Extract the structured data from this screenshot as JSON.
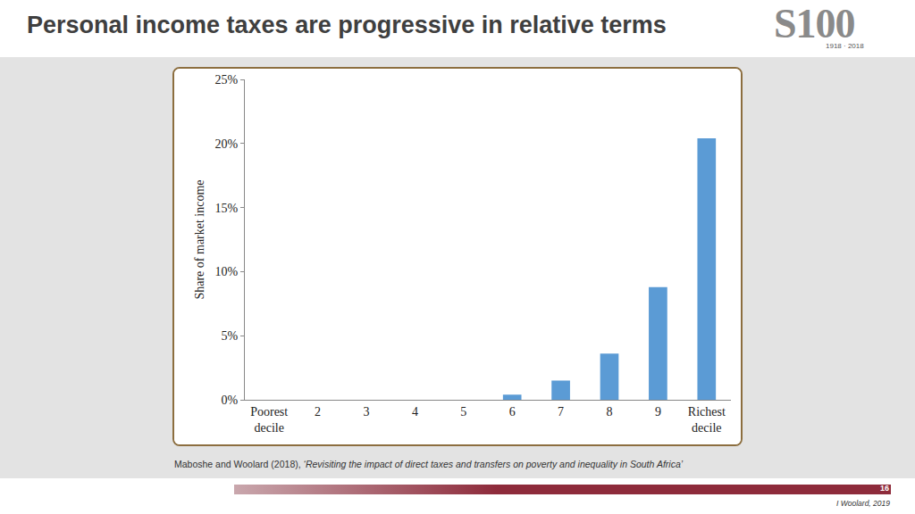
{
  "slide": {
    "title": "Personal income taxes are progressive in relative terms",
    "logo": {
      "text": "S100",
      "years": "1918 · 2018"
    },
    "caption": {
      "source": "Maboshe and Woolard (2018), ",
      "work": "‘Revisiting the impact of direct taxes and transfers on poverty and inequality in South Africa’"
    },
    "page_number": "16",
    "author": "I Woolard, 2019"
  },
  "chart_data": {
    "type": "bar",
    "y_label": "Share of market income",
    "categories": [
      "Poorest decile",
      "2",
      "3",
      "4",
      "5",
      "6",
      "7",
      "8",
      "9",
      "Richest decile"
    ],
    "values": [
      0,
      0,
      0,
      0,
      0,
      0.4,
      1.5,
      3.6,
      8.8,
      20.4
    ],
    "color": "#5b9bd5",
    "ylim": [
      0,
      25
    ],
    "yticks": [
      {
        "value": 0,
        "label": "0%"
      },
      {
        "value": 5,
        "label": "5%"
      },
      {
        "value": 10,
        "label": "10%"
      },
      {
        "value": 15,
        "label": "15%"
      },
      {
        "value": 20,
        "label": "20%"
      },
      {
        "value": 25,
        "label": "25%"
      }
    ],
    "grid": false
  }
}
